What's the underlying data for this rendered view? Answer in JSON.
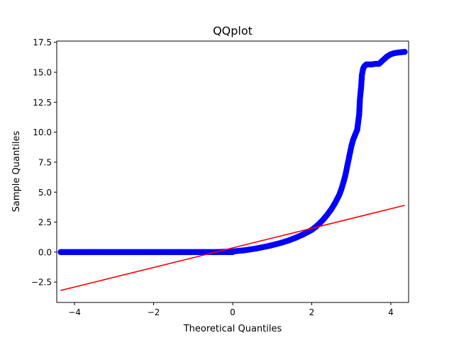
{
  "chart_data": {
    "type": "scatter",
    "title": "QQplot",
    "xlabel": "Theoretical Quantiles",
    "ylabel": "Sample Quantiles",
    "xlim": [
      -4.45,
      4.45
    ],
    "ylim": [
      -4.2,
      17.6
    ],
    "xticks": [
      -4,
      -2,
      0,
      2,
      4
    ],
    "xtick_labels": [
      "−4",
      "−2",
      "0",
      "2",
      "4"
    ],
    "yticks": [
      -2.5,
      0.0,
      2.5,
      5.0,
      7.5,
      10.0,
      12.5,
      15.0,
      17.5
    ],
    "ytick_labels": [
      "−2.5",
      "0.0",
      "2.5",
      "5.0",
      "7.5",
      "10.0",
      "12.5",
      "15.0",
      "17.5"
    ],
    "grid": false,
    "colors": {
      "points": "#0000ff",
      "line": "#ff0000"
    },
    "series": [
      {
        "type": "scatter",
        "x": [
          -4.35,
          -4.0,
          -3.6,
          -3.2,
          -2.8,
          -2.4,
          -2.0,
          -1.6,
          -1.2,
          -0.8,
          -0.4,
          0.0,
          0.3,
          0.6,
          0.9,
          1.2,
          1.4,
          1.6,
          1.8,
          2.0,
          2.1,
          2.2,
          2.3,
          2.4,
          2.5,
          2.6,
          2.7,
          2.75,
          2.8,
          2.85,
          2.9,
          2.95,
          3.0,
          3.05,
          3.1,
          3.15,
          3.2,
          3.22,
          3.25,
          3.27,
          3.3,
          3.33,
          3.38,
          3.45,
          3.52,
          3.6,
          3.7,
          3.8,
          3.9,
          4.0,
          4.1,
          4.2,
          4.35
        ],
        "y": [
          0.0,
          0.0,
          0.0,
          0.0,
          0.0,
          0.0,
          0.0,
          0.0,
          0.0,
          0.0,
          0.0,
          0.05,
          0.15,
          0.3,
          0.5,
          0.75,
          0.95,
          1.2,
          1.5,
          1.85,
          2.1,
          2.4,
          2.75,
          3.15,
          3.6,
          4.15,
          4.8,
          5.25,
          5.8,
          6.4,
          7.2,
          8.0,
          8.8,
          9.4,
          9.8,
          10.2,
          11.5,
          12.8,
          13.8,
          14.8,
          15.3,
          15.5,
          15.65,
          15.65,
          15.65,
          15.7,
          15.7,
          16.0,
          16.3,
          16.5,
          16.6,
          16.65,
          16.7
        ]
      },
      {
        "type": "line",
        "x": [
          -4.35,
          4.35
        ],
        "y": [
          -3.2,
          3.9
        ]
      }
    ]
  }
}
